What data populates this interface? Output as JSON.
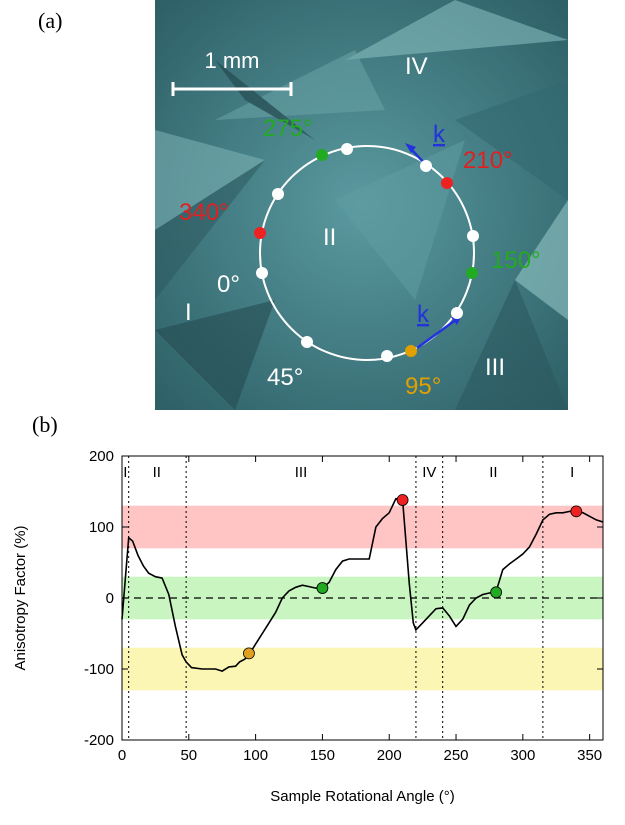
{
  "panel_labels": {
    "a": "(a)",
    "b": "(b)"
  },
  "micrograph": {
    "scale_bar_label": "1 mm",
    "region_labels": [
      "I",
      "II",
      "III",
      "IV"
    ],
    "angle_labels": [
      {
        "text": "275°",
        "color": "#22aa22"
      },
      {
        "text": "210°",
        "color": "#e02020"
      },
      {
        "text": "340°",
        "color": "#e02020"
      },
      {
        "text": "150°",
        "color": "#22aa22"
      },
      {
        "text": "0°",
        "color": "#ffffff"
      },
      {
        "text": "45°",
        "color": "#ffffff"
      },
      {
        "text": "95°",
        "color": "#e0a000"
      }
    ],
    "wavevector_label": "k",
    "colors": {
      "background": "#3f7f88",
      "circle": "#ffffff",
      "arrow": "#2233dd"
    }
  },
  "chart_data": {
    "type": "line",
    "title": "",
    "xlabel": "Sample Rotational Angle (°)",
    "ylabel": "Anisotropy Factor (%)",
    "xlim": [
      0,
      360
    ],
    "ylim": [
      -200,
      200
    ],
    "xticks": [
      0,
      50,
      100,
      150,
      200,
      250,
      300,
      350
    ],
    "yticks": [
      -200,
      -100,
      0,
      100,
      200
    ],
    "x": [
      0,
      5,
      8,
      12,
      16,
      20,
      25,
      30,
      35,
      40,
      45,
      48,
      52,
      60,
      70,
      75,
      80,
      85,
      88,
      92,
      95,
      100,
      105,
      110,
      115,
      120,
      125,
      130,
      135,
      140,
      145,
      150,
      155,
      160,
      165,
      170,
      175,
      180,
      185,
      190,
      195,
      200,
      205,
      210,
      215,
      218,
      220,
      225,
      230,
      235,
      240,
      245,
      250,
      255,
      260,
      265,
      270,
      275,
      280,
      285,
      290,
      295,
      300,
      305,
      310,
      315,
      320,
      325,
      330,
      335,
      340,
      345,
      350,
      355,
      360
    ],
    "y": [
      -30,
      85,
      80,
      60,
      45,
      35,
      30,
      28,
      5,
      -40,
      -80,
      -90,
      -98,
      -100,
      -100,
      -103,
      -97,
      -96,
      -90,
      -86,
      -80,
      -65,
      -50,
      -35,
      -20,
      0,
      10,
      15,
      18,
      16,
      14,
      14,
      22,
      40,
      52,
      55,
      55,
      55,
      55,
      100,
      112,
      120,
      140,
      138,
      20,
      -35,
      -45,
      -35,
      -25,
      -15,
      -14,
      -25,
      -40,
      -30,
      -10,
      0,
      5,
      7,
      9,
      40,
      48,
      55,
      62,
      72,
      90,
      110,
      118,
      120,
      120,
      122,
      123,
      120,
      115,
      110,
      107
    ],
    "region_boundaries": [
      5,
      48,
      220,
      240,
      315
    ],
    "region_labels": [
      {
        "text": "I",
        "x": 2.5
      },
      {
        "text": "II",
        "x": 26
      },
      {
        "text": "III",
        "x": 134
      },
      {
        "text": "IV",
        "x": 230
      },
      {
        "text": "II",
        "x": 278
      },
      {
        "text": "I",
        "x": 337
      }
    ],
    "bands": [
      {
        "range": [
          70,
          130
        ],
        "color": "#ffc4c4"
      },
      {
        "range": [
          -30,
          30
        ],
        "color": "#c8f5c0"
      },
      {
        "range": [
          -130,
          -70
        ],
        "color": "#fbf6b4"
      }
    ],
    "markers": [
      {
        "x": 95,
        "y": -78,
        "color": "#e0a020"
      },
      {
        "x": 150,
        "y": 14,
        "color": "#22aa22"
      },
      {
        "x": 210,
        "y": 138,
        "color": "#ee2222"
      },
      {
        "x": 280,
        "y": 8,
        "color": "#22aa22"
      },
      {
        "x": 340,
        "y": 122,
        "color": "#ee2222"
      }
    ],
    "zero_line": "dashed",
    "grid": false
  }
}
